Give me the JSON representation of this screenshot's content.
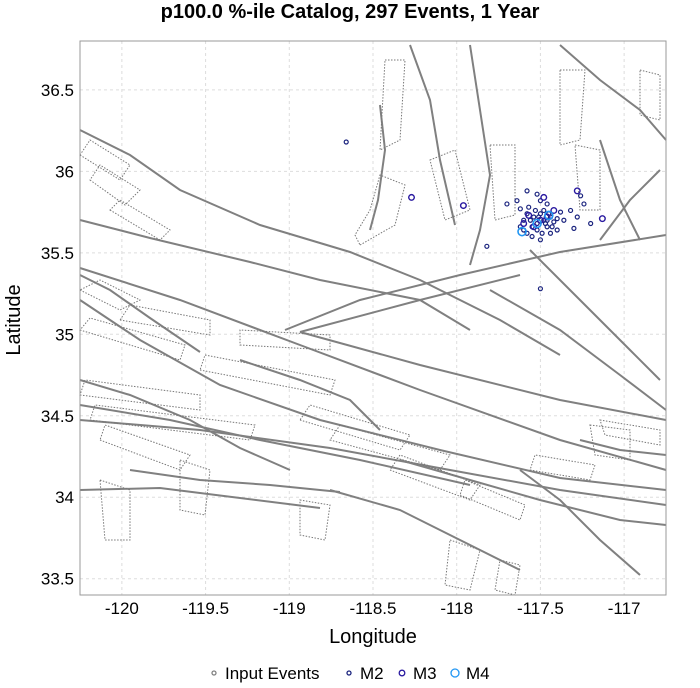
{
  "chart_data": {
    "type": "scatter",
    "title": "p100.0 %-ile Catalog, 297 Events, 1 Year",
    "xlabel": "Longitude",
    "ylabel": "Latitude",
    "xlim": [
      -120.25,
      -116.75
    ],
    "ylim": [
      33.4,
      36.8
    ],
    "xticks": [
      -120,
      -119.5,
      -119,
      -118.5,
      -118,
      -117.5,
      -117
    ],
    "xtick_labels": [
      "-120",
      "-119.5",
      "-119",
      "-118.5",
      "-118",
      "-117.5",
      "-117"
    ],
    "yticks": [
      33.5,
      34,
      34.5,
      35,
      35.5,
      36,
      36.5
    ],
    "ytick_labels": [
      "33.5",
      "34",
      "34.5",
      "35",
      "35.5",
      "36",
      "36.5"
    ],
    "grid": true,
    "legend_position": "bottom",
    "legend": [
      "Input Events",
      "M2",
      "M3",
      "M4"
    ],
    "colors": {
      "input_events": "#808080",
      "M2": "#1a237e",
      "M3": "#2a1aa0",
      "M4": "#2196f3",
      "faults": "#808080",
      "grid": "#dddddd"
    },
    "series": [
      {
        "name": "M2",
        "points": [
          [
            -118.66,
            36.18
          ],
          [
            -117.5,
            35.28
          ],
          [
            -117.82,
            35.54
          ],
          [
            -117.7,
            35.8
          ],
          [
            -117.62,
            35.77
          ],
          [
            -117.58,
            35.74
          ],
          [
            -117.56,
            35.7
          ],
          [
            -117.54,
            35.72
          ],
          [
            -117.52,
            35.68
          ],
          [
            -117.5,
            35.74
          ],
          [
            -117.48,
            35.7
          ],
          [
            -117.46,
            35.66
          ],
          [
            -117.44,
            35.72
          ],
          [
            -117.42,
            35.69
          ],
          [
            -117.4,
            35.71
          ],
          [
            -117.6,
            35.64
          ],
          [
            -117.58,
            35.62
          ],
          [
            -117.55,
            35.66
          ],
          [
            -117.52,
            35.64
          ],
          [
            -117.49,
            35.62
          ],
          [
            -117.47,
            35.68
          ],
          [
            -117.45,
            35.74
          ],
          [
            -117.43,
            35.66
          ],
          [
            -117.57,
            35.78
          ],
          [
            -117.53,
            35.76
          ],
          [
            -117.51,
            35.72
          ],
          [
            -117.48,
            35.76
          ],
          [
            -117.46,
            35.7
          ],
          [
            -117.6,
            35.7
          ],
          [
            -117.62,
            35.66
          ],
          [
            -117.38,
            35.75
          ],
          [
            -117.36,
            35.7
          ],
          [
            -117.32,
            35.76
          ],
          [
            -117.3,
            35.65
          ],
          [
            -117.26,
            35.85
          ],
          [
            -117.24,
            35.8
          ],
          [
            -117.28,
            35.72
          ],
          [
            -117.2,
            35.68
          ],
          [
            -117.55,
            35.6
          ],
          [
            -117.5,
            35.58
          ],
          [
            -117.44,
            35.62
          ],
          [
            -117.4,
            35.64
          ],
          [
            -117.5,
            35.82
          ],
          [
            -117.46,
            35.8
          ],
          [
            -117.52,
            35.86
          ],
          [
            -117.58,
            35.88
          ],
          [
            -117.64,
            35.82
          ]
        ]
      },
      {
        "name": "M3",
        "points": [
          [
            -118.27,
            35.84
          ],
          [
            -117.96,
            35.79
          ],
          [
            -117.28,
            35.88
          ],
          [
            -117.13,
            35.71
          ],
          [
            -117.57,
            35.73
          ],
          [
            -117.5,
            35.7
          ],
          [
            -117.46,
            35.72
          ],
          [
            -117.6,
            35.68
          ],
          [
            -117.54,
            35.66
          ],
          [
            -117.42,
            35.76
          ],
          [
            -117.48,
            35.84
          ]
        ]
      },
      {
        "name": "M4",
        "points": [
          [
            -117.61,
            35.63
          ],
          [
            -117.52,
            35.68
          ],
          [
            -117.45,
            35.73
          ]
        ]
      }
    ]
  }
}
